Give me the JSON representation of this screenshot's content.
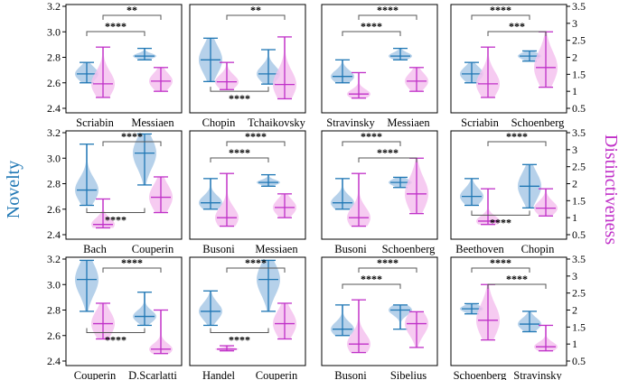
{
  "figure": {
    "left_axis_label": "Novelty",
    "right_axis_label": "Distinctiveness",
    "novelty_color": "#1f77b4",
    "distinct_color": "#c030c8",
    "novelty_fill": "#a9c9e6",
    "distinct_fill": "#f4c2ee"
  },
  "chart_data": [
    {
      "type": "violin",
      "panel": 1,
      "categories": [
        "Scriabin",
        "Messiaen"
      ],
      "novelty": [
        {
          "composer": "Scriabin",
          "min": 2.6,
          "q1": 2.62,
          "median": 2.67,
          "q3": 2.7,
          "max": 2.76
        },
        {
          "composer": "Messiaen",
          "min": 2.78,
          "q1": 2.79,
          "median": 2.81,
          "q3": 2.82,
          "max": 2.87
        }
      ],
      "distinctiveness": [
        {
          "composer": "Scriabin",
          "min": 0.82,
          "q1": 1.02,
          "median": 1.22,
          "q3": 1.55,
          "max": 2.3
        },
        {
          "composer": "Messiaen",
          "min": 1.0,
          "q1": 1.1,
          "median": 1.3,
          "q3": 1.45,
          "max": 1.7
        }
      ],
      "annotations": [
        {
          "pair": "novelty Scriabin–Messiaen",
          "label": "****"
        },
        {
          "pair": "distinctiveness Scriabin–Messiaen",
          "label": "**"
        }
      ],
      "ylim_left": [
        2.4,
        3.2
      ],
      "ylim_right": [
        0.5,
        3.5
      ]
    },
    {
      "type": "violin",
      "panel": 2,
      "categories": [
        "Chopin",
        "Tchaikovsky"
      ],
      "novelty": [
        {
          "composer": "Chopin",
          "min": 2.61,
          "q1": 2.7,
          "median": 2.78,
          "q3": 2.86,
          "max": 2.95
        },
        {
          "composer": "Tchaikovsky",
          "min": 2.59,
          "q1": 2.63,
          "median": 2.67,
          "q3": 2.72,
          "max": 2.86
        }
      ],
      "distinctiveness": [
        {
          "composer": "Chopin",
          "min": 1.05,
          "q1": 1.15,
          "median": 1.28,
          "q3": 1.45,
          "max": 1.85
        },
        {
          "composer": "Tchaikovsky",
          "min": 0.78,
          "q1": 0.95,
          "median": 1.2,
          "q3": 1.55,
          "max": 2.6
        }
      ],
      "annotations": [
        {
          "pair": "novelty Chopin–Tchaikovsky",
          "label": "****"
        },
        {
          "pair": "distinctiveness Chopin–Tchaikovsky",
          "label": "**"
        }
      ],
      "ylim_left": [
        2.4,
        3.2
      ],
      "ylim_right": [
        0.5,
        3.5
      ]
    },
    {
      "type": "violin",
      "panel": 3,
      "categories": [
        "Stravinsky",
        "Messiaen"
      ],
      "novelty": [
        {
          "composer": "Stravinsky",
          "min": 2.6,
          "q1": 2.62,
          "median": 2.65,
          "q3": 2.69,
          "max": 2.78
        },
        {
          "composer": "Messiaen",
          "min": 2.78,
          "q1": 2.79,
          "median": 2.81,
          "q3": 2.83,
          "max": 2.87
        }
      ],
      "distinctiveness": [
        {
          "composer": "Stravinsky",
          "min": 0.8,
          "q1": 0.85,
          "median": 0.92,
          "q3": 1.05,
          "max": 1.55
        },
        {
          "composer": "Messiaen",
          "min": 1.0,
          "q1": 1.1,
          "median": 1.3,
          "q3": 1.45,
          "max": 1.7
        }
      ],
      "annotations": [
        {
          "pair": "novelty Stravinsky–Messiaen",
          "label": "****"
        },
        {
          "pair": "distinctiveness Stravinsky–Messiaen",
          "label": "****"
        }
      ],
      "ylim_left": [
        2.4,
        3.2
      ],
      "ylim_right": [
        0.5,
        3.5
      ]
    },
    {
      "type": "violin",
      "panel": 4,
      "categories": [
        "Scriabin",
        "Schoenberg"
      ],
      "novelty": [
        {
          "composer": "Scriabin",
          "min": 2.6,
          "q1": 2.62,
          "median": 2.67,
          "q3": 2.7,
          "max": 2.76
        },
        {
          "composer": "Schoenberg",
          "min": 2.77,
          "q1": 2.79,
          "median": 2.81,
          "q3": 2.83,
          "max": 2.85
        }
      ],
      "distinctiveness": [
        {
          "composer": "Scriabin",
          "min": 0.82,
          "q1": 1.02,
          "median": 1.22,
          "q3": 1.55,
          "max": 2.3
        },
        {
          "composer": "Schoenberg",
          "min": 1.12,
          "q1": 1.35,
          "median": 1.7,
          "q3": 2.05,
          "max": 2.75
        }
      ],
      "annotations": [
        {
          "pair": "novelty Scriabin–Schoenberg",
          "label": "****"
        },
        {
          "pair": "distinctiveness Scriabin–Schoenberg",
          "label": "***"
        }
      ],
      "ylim_left": [
        2.4,
        3.2
      ],
      "ylim_right": [
        0.5,
        3.5
      ]
    },
    {
      "type": "violin",
      "panel": 5,
      "categories": [
        "Bach",
        "Couperin"
      ],
      "novelty": [
        {
          "composer": "Bach",
          "min": 2.63,
          "q1": 2.68,
          "median": 2.75,
          "q3": 2.82,
          "max": 3.11
        },
        {
          "composer": "Couperin",
          "min": 2.79,
          "q1": 2.95,
          "median": 3.04,
          "q3": 3.13,
          "max": 3.19
        }
      ],
      "distinctiveness": [
        {
          "composer": "Bach",
          "min": 0.7,
          "q1": 0.72,
          "median": 0.8,
          "q3": 1.0,
          "max": 1.55
        },
        {
          "composer": "Couperin",
          "min": 1.15,
          "q1": 1.35,
          "median": 1.6,
          "q3": 1.9,
          "max": 2.2
        }
      ],
      "annotations": [
        {
          "pair": "novelty Bach–Couperin",
          "label": "****"
        },
        {
          "pair": "distinctiveness Bach–Couperin",
          "label": "****"
        }
      ],
      "ylim_left": [
        2.4,
        3.2
      ],
      "ylim_right": [
        0.5,
        3.5
      ]
    },
    {
      "type": "violin",
      "panel": 6,
      "categories": [
        "Busoni",
        "Messiaen"
      ],
      "novelty": [
        {
          "composer": "Busoni",
          "min": 2.6,
          "q1": 2.62,
          "median": 2.65,
          "q3": 2.7,
          "max": 2.84
        },
        {
          "composer": "Messiaen",
          "min": 2.78,
          "q1": 2.79,
          "median": 2.81,
          "q3": 2.82,
          "max": 2.87
        }
      ],
      "distinctiveness": [
        {
          "composer": "Busoni",
          "min": 0.75,
          "q1": 0.85,
          "median": 1.0,
          "q3": 1.3,
          "max": 2.3
        },
        {
          "composer": "Messiaen",
          "min": 1.0,
          "q1": 1.1,
          "median": 1.3,
          "q3": 1.45,
          "max": 1.7
        }
      ],
      "annotations": [
        {
          "pair": "novelty Busoni–Messiaen",
          "label": "****"
        },
        {
          "pair": "distinctiveness Busoni–Messiaen",
          "label": "****"
        }
      ],
      "ylim_left": [
        2.4,
        3.2
      ],
      "ylim_right": [
        0.5,
        3.5
      ]
    },
    {
      "type": "violin",
      "panel": 7,
      "categories": [
        "Busoni",
        "Schoenberg"
      ],
      "novelty": [
        {
          "composer": "Busoni",
          "min": 2.6,
          "q1": 2.62,
          "median": 2.65,
          "q3": 2.7,
          "max": 2.84
        },
        {
          "composer": "Schoenberg",
          "min": 2.77,
          "q1": 2.79,
          "median": 2.81,
          "q3": 2.83,
          "max": 2.85
        }
      ],
      "distinctiveness": [
        {
          "composer": "Busoni",
          "min": 0.75,
          "q1": 0.85,
          "median": 1.0,
          "q3": 1.3,
          "max": 2.3
        },
        {
          "composer": "Schoenberg",
          "min": 1.12,
          "q1": 1.35,
          "median": 1.7,
          "q3": 2.05,
          "max": 2.75
        }
      ],
      "annotations": [
        {
          "pair": "novelty Busoni–Schoenberg",
          "label": "****"
        },
        {
          "pair": "distinctiveness Busoni–Schoenberg",
          "label": "****"
        }
      ],
      "ylim_left": [
        2.4,
        3.2
      ],
      "ylim_right": [
        0.5,
        3.5
      ]
    },
    {
      "type": "violin",
      "panel": 8,
      "categories": [
        "Beethoven",
        "Chopin"
      ],
      "novelty": [
        {
          "composer": "Beethoven",
          "min": 2.63,
          "q1": 2.66,
          "median": 2.7,
          "q3": 2.75,
          "max": 2.84
        },
        {
          "composer": "Chopin",
          "min": 2.61,
          "q1": 2.7,
          "median": 2.78,
          "q3": 2.86,
          "max": 2.95
        }
      ],
      "distinctiveness": [
        {
          "composer": "Beethoven",
          "min": 0.8,
          "q1": 0.82,
          "median": 0.9,
          "q3": 1.05,
          "max": 1.85
        },
        {
          "composer": "Chopin",
          "min": 1.05,
          "q1": 1.15,
          "median": 1.28,
          "q3": 1.45,
          "max": 1.85
        }
      ],
      "annotations": [
        {
          "pair": "novelty Beethoven–Chopin",
          "label": "****"
        },
        {
          "pair": "distinctiveness Beethoven–Chopin",
          "label": "****"
        }
      ],
      "ylim_left": [
        2.4,
        3.2
      ],
      "ylim_right": [
        0.5,
        3.5
      ]
    },
    {
      "type": "violin",
      "panel": 9,
      "categories": [
        "Couperin",
        "D.Scarlatti"
      ],
      "novelty": [
        {
          "composer": "Couperin",
          "min": 2.79,
          "q1": 2.95,
          "median": 3.04,
          "q3": 3.13,
          "max": 3.19
        },
        {
          "composer": "D.Scarlatti",
          "min": 2.68,
          "q1": 2.72,
          "median": 2.75,
          "q3": 2.79,
          "max": 2.94
        }
      ],
      "distinctiveness": [
        {
          "composer": "Couperin",
          "min": 1.15,
          "q1": 1.35,
          "median": 1.6,
          "q3": 1.9,
          "max": 2.2
        },
        {
          "composer": "D.Scarlatti",
          "min": 0.72,
          "q1": 0.75,
          "median": 0.85,
          "q3": 1.0,
          "max": 2.0
        }
      ],
      "annotations": [
        {
          "pair": "novelty Couperin–D.Scarlatti",
          "label": "****"
        },
        {
          "pair": "distinctiveness Couperin–D.Scarlatti",
          "label": "****"
        }
      ],
      "ylim_left": [
        2.4,
        3.2
      ],
      "ylim_right": [
        0.5,
        3.5
      ]
    },
    {
      "type": "violin",
      "panel": 10,
      "categories": [
        "Handel",
        "Couperin"
      ],
      "novelty": [
        {
          "composer": "Handel",
          "min": 2.68,
          "q1": 2.74,
          "median": 2.79,
          "q3": 2.84,
          "max": 2.95
        },
        {
          "composer": "Couperin",
          "min": 2.79,
          "q1": 2.95,
          "median": 3.04,
          "q3": 3.13,
          "max": 3.19
        }
      ],
      "distinctiveness": [
        {
          "composer": "Handel",
          "min": 0.8,
          "q1": 0.82,
          "median": 0.85,
          "q3": 0.88,
          "max": 0.95
        },
        {
          "composer": "Couperin",
          "min": 1.15,
          "q1": 1.35,
          "median": 1.6,
          "q3": 1.9,
          "max": 2.2
        }
      ],
      "annotations": [
        {
          "pair": "novelty Handel–Couperin",
          "label": "****"
        },
        {
          "pair": "distinctiveness Handel–Couperin",
          "label": "****"
        }
      ],
      "ylim_left": [
        2.4,
        3.2
      ],
      "ylim_right": [
        0.5,
        3.5
      ]
    },
    {
      "type": "violin",
      "panel": 11,
      "categories": [
        "Busoni",
        "Sibelius"
      ],
      "novelty": [
        {
          "composer": "Busoni",
          "min": 2.6,
          "q1": 2.62,
          "median": 2.65,
          "q3": 2.7,
          "max": 2.84
        },
        {
          "composer": "Sibelius",
          "min": 2.65,
          "q1": 2.76,
          "median": 2.8,
          "q3": 2.82,
          "max": 2.84
        }
      ],
      "distinctiveness": [
        {
          "composer": "Busoni",
          "min": 0.75,
          "q1": 0.85,
          "median": 1.0,
          "q3": 1.3,
          "max": 2.3
        },
        {
          "composer": "Sibelius",
          "min": 0.9,
          "q1": 1.3,
          "median": 1.6,
          "q3": 1.8,
          "max": 1.95
        }
      ],
      "annotations": [
        {
          "pair": "novelty Busoni–Sibelius",
          "label": "****"
        },
        {
          "pair": "distinctiveness Busoni–Sibelius",
          "label": "****"
        }
      ],
      "ylim_left": [
        2.4,
        3.2
      ],
      "ylim_right": [
        0.5,
        3.5
      ]
    },
    {
      "type": "violin",
      "panel": 12,
      "categories": [
        "Schoenberg",
        "Stravinsky"
      ],
      "novelty": [
        {
          "composer": "Schoenberg",
          "min": 2.77,
          "q1": 2.79,
          "median": 2.81,
          "q3": 2.83,
          "max": 2.85
        },
        {
          "composer": "Stravinsky",
          "min": 2.63,
          "q1": 2.66,
          "median": 2.69,
          "q3": 2.73,
          "max": 2.79
        }
      ],
      "distinctiveness": [
        {
          "composer": "Schoenberg",
          "min": 1.12,
          "q1": 1.35,
          "median": 1.7,
          "q3": 2.05,
          "max": 2.75
        },
        {
          "composer": "Stravinsky",
          "min": 0.8,
          "q1": 0.85,
          "median": 0.92,
          "q3": 1.05,
          "max": 1.55
        }
      ],
      "annotations": [
        {
          "pair": "novelty Schoenberg–Stravinsky",
          "label": "****"
        },
        {
          "pair": "distinctiveness Schoenberg–Stravinsky",
          "label": "****"
        }
      ],
      "ylim_left": [
        2.4,
        3.2
      ],
      "ylim_right": [
        0.5,
        3.5
      ]
    }
  ]
}
